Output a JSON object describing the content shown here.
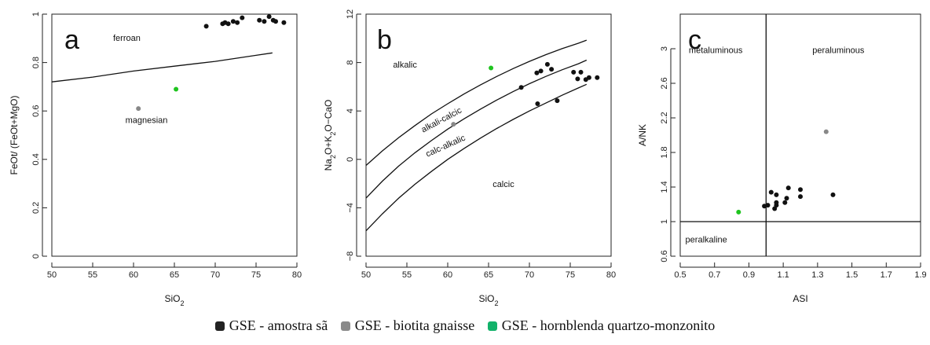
{
  "colors": {
    "amostra_sa": "#111111",
    "biotita_gnaisse": "#888888",
    "hornblenda": "#1fc41f",
    "axis": "#222222",
    "legend_amostra": "#222222",
    "legend_biotita": "#8a8a8a",
    "legend_hornblenda": "#12b26a"
  },
  "legend": {
    "items": [
      {
        "label": "GSE - amostra sã",
        "color_key": "legend_amostra"
      },
      {
        "label": "GSE - biotita gnaisse",
        "color_key": "legend_biotita"
      },
      {
        "label": "GSE - hornblenda quartzo-monzonito",
        "color_key": "legend_hornblenda"
      }
    ]
  },
  "chart_data": [
    {
      "type": "scatter",
      "panel_label": "a",
      "xlabel": "SiO2",
      "ylabel": "FeOt/ (FeOt+MgO)",
      "xlim": [
        50,
        80
      ],
      "ylim": [
        0,
        1
      ],
      "xticks": [
        50,
        55,
        60,
        65,
        70,
        75,
        80
      ],
      "yticks": [
        0,
        0.2,
        0.4,
        0.6,
        0.8,
        1
      ],
      "region_labels": [
        {
          "text": "ferroan",
          "x": 57.5,
          "y": 0.89
        },
        {
          "text": "magnesian",
          "x": 59,
          "y": 0.55
        }
      ],
      "boundary_lines": [
        {
          "x": [
            50,
            55,
            60,
            65,
            70,
            75,
            77
          ],
          "y": [
            0.72,
            0.74,
            0.765,
            0.785,
            0.805,
            0.83,
            0.84
          ]
        }
      ],
      "series": [
        {
          "name": "GSE - amostra sã",
          "color_key": "amostra_sa",
          "points": [
            [
              68.9,
              0.95
            ],
            [
              70.9,
              0.96
            ],
            [
              71.2,
              0.965
            ],
            [
              71.6,
              0.96
            ],
            [
              72.2,
              0.97
            ],
            [
              72.7,
              0.965
            ],
            [
              73.3,
              0.985
            ],
            [
              75.4,
              0.975
            ],
            [
              76.0,
              0.97
            ],
            [
              76.6,
              0.99
            ],
            [
              77.1,
              0.975
            ],
            [
              77.4,
              0.97
            ],
            [
              78.4,
              0.965
            ]
          ]
        },
        {
          "name": "GSE - biotita gnaisse",
          "color_key": "biotita_gnaisse",
          "points": [
            [
              60.6,
              0.61
            ]
          ]
        },
        {
          "name": "GSE - hornblenda quartzo-monzonito",
          "color_key": "hornblenda",
          "points": [
            [
              65.2,
              0.69
            ]
          ]
        }
      ]
    },
    {
      "type": "scatter",
      "panel_label": "b",
      "xlabel": "SiO2",
      "ylabel": "Na2O+K2O−CaO",
      "xlim": [
        50,
        80
      ],
      "ylim": [
        -8,
        12
      ],
      "xticks": [
        50,
        55,
        60,
        65,
        70,
        75,
        80
      ],
      "yticks": [
        -8,
        -4,
        0,
        4,
        8,
        12
      ],
      "region_labels": [
        {
          "text": "alkalic",
          "x": 53.3,
          "y": 7.6,
          "rotate": 0
        },
        {
          "text": "alkali-calcic",
          "x": 57,
          "y": 2.2,
          "rotate": -28
        },
        {
          "text": "calc-alkalic",
          "x": 57.5,
          "y": 0.2,
          "rotate": -24
        },
        {
          "text": "calcic",
          "x": 65.5,
          "y": -2.3,
          "rotate": 0
        }
      ],
      "boundary_lines": [
        {
          "x": [
            50,
            52,
            54,
            56,
            58,
            60,
            62,
            64,
            66,
            68,
            70,
            72,
            74,
            76,
            77
          ],
          "y": [
            -0.5,
            0.7,
            1.8,
            2.8,
            3.75,
            4.6,
            5.4,
            6.15,
            6.85,
            7.5,
            8.1,
            8.65,
            9.15,
            9.6,
            9.85
          ]
        },
        {
          "x": [
            50,
            52,
            54,
            56,
            58,
            60,
            62,
            64,
            66,
            68,
            70,
            72,
            74,
            76,
            77
          ],
          "y": [
            -3.2,
            -1.8,
            -0.55,
            0.55,
            1.55,
            2.5,
            3.35,
            4.15,
            4.9,
            5.6,
            6.25,
            6.85,
            7.4,
            7.9,
            8.2
          ]
        },
        {
          "x": [
            50,
            52,
            54,
            56,
            58,
            60,
            62,
            64,
            66,
            68,
            70,
            72,
            74,
            76,
            77
          ],
          "y": [
            -5.9,
            -4.5,
            -3.2,
            -2.05,
            -1.0,
            0.0,
            0.9,
            1.75,
            2.55,
            3.3,
            4.0,
            4.65,
            5.3,
            5.9,
            6.2
          ]
        }
      ],
      "series": [
        {
          "name": "GSE - amostra sã",
          "color_key": "amostra_sa",
          "points": [
            [
              69.0,
              5.95
            ],
            [
              70.9,
              7.15
            ],
            [
              71.4,
              7.3
            ],
            [
              72.2,
              7.85
            ],
            [
              72.7,
              7.45
            ],
            [
              71.0,
              4.6
            ],
            [
              73.4,
              4.85
            ],
            [
              75.4,
              7.2
            ],
            [
              76.3,
              7.2
            ],
            [
              75.9,
              6.65
            ],
            [
              76.9,
              6.6
            ],
            [
              77.3,
              6.75
            ],
            [
              78.3,
              6.75
            ]
          ]
        },
        {
          "name": "GSE - biotita gnaisse",
          "color_key": "biotita_gnaisse",
          "points": [
            [
              60.7,
              2.9
            ]
          ]
        },
        {
          "name": "GSE - hornblenda quartzo-monzonito",
          "color_key": "hornblenda",
          "points": [
            [
              65.3,
              7.55
            ]
          ]
        }
      ]
    },
    {
      "type": "scatter",
      "panel_label": "c",
      "xlabel": "ASI",
      "ylabel": "A/NK",
      "xlim": [
        0.5,
        1.9
      ],
      "ylim": [
        0.6,
        3.4
      ],
      "xticks": [
        0.5,
        0.7,
        0.9,
        1.1,
        1.3,
        1.5,
        1.7,
        1.9
      ],
      "yticks": [
        0.6,
        1,
        1.4,
        1.8,
        2.2,
        2.6,
        3
      ],
      "region_labels": [
        {
          "text": "metaluminous",
          "x": 0.55,
          "y": 2.95
        },
        {
          "text": "peraluminous",
          "x": 1.27,
          "y": 2.95
        },
        {
          "text": "peraluminous",
          "x": 0.55,
          "y": 0.75,
          "hidden": true
        },
        {
          "text": "peralkaline",
          "x": 0.53,
          "y": 0.76
        }
      ],
      "boundary_lines": [
        {
          "x": [
            1.0,
            1.0
          ],
          "y": [
            0.6,
            3.4
          ]
        },
        {
          "x": [
            0.5,
            1.9
          ],
          "y": [
            1.0,
            1.0
          ]
        }
      ],
      "series": [
        {
          "name": "GSE - amostra sã",
          "color_key": "amostra_sa",
          "points": [
            [
              0.99,
              1.18
            ],
            [
              1.01,
              1.19
            ],
            [
              1.03,
              1.34
            ],
            [
              1.05,
              1.15
            ],
            [
              1.06,
              1.19
            ],
            [
              1.06,
              1.31
            ],
            [
              1.06,
              1.22
            ],
            [
              1.11,
              1.22
            ],
            [
              1.12,
              1.27
            ],
            [
              1.13,
              1.39
            ],
            [
              1.2,
              1.37
            ],
            [
              1.2,
              1.29
            ],
            [
              1.39,
              1.31
            ]
          ]
        },
        {
          "name": "GSE - biotita gnaisse",
          "color_key": "biotita_gnaisse",
          "points": [
            [
              1.35,
              2.04
            ]
          ]
        },
        {
          "name": "GSE - hornblenda quartzo-monzonito",
          "color_key": "hornblenda",
          "points": [
            [
              0.84,
              1.11
            ]
          ]
        }
      ]
    }
  ]
}
